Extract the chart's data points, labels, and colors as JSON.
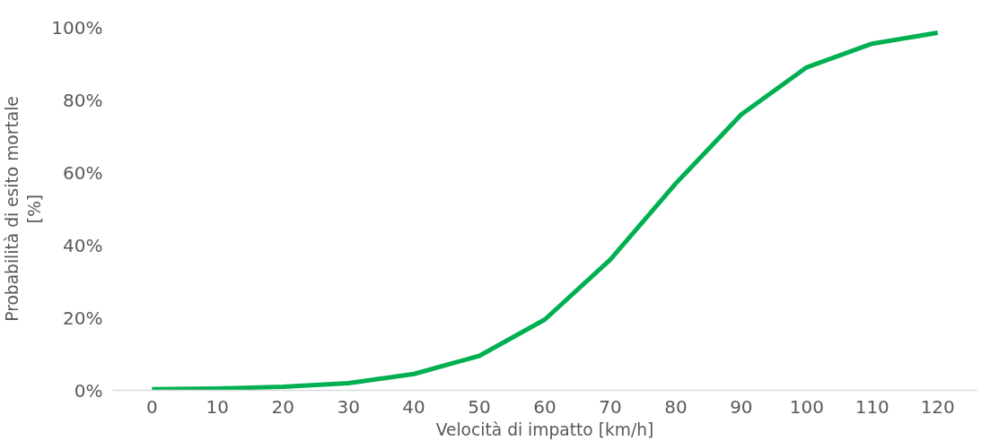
{
  "chart_data": {
    "type": "line",
    "xlabel": "Velocità di impatto [km/h]",
    "ylabel": "Probabilità di esito mortale [%]",
    "categories": [
      "0",
      "10",
      "20",
      "30",
      "40",
      "50",
      "60",
      "70",
      "80",
      "90",
      "100",
      "110",
      "120"
    ],
    "series": [
      {
        "color": "#00b050",
        "values": [
          0.3,
          0.5,
          1,
          2,
          4.5,
          9.5,
          19.5,
          36,
          57,
          76,
          89,
          95.5,
          98.5
        ]
      }
    ],
    "ylim": [
      0,
      100
    ],
    "yticks": [
      {
        "value": 0,
        "label": "0%"
      },
      {
        "value": 20,
        "label": "20%"
      },
      {
        "value": 40,
        "label": "40%"
      },
      {
        "value": 60,
        "label": "60%"
      },
      {
        "value": 80,
        "label": "80%"
      },
      {
        "value": 100,
        "label": "100%"
      }
    ],
    "grid": false,
    "marker": "none",
    "line_style": "solid"
  }
}
